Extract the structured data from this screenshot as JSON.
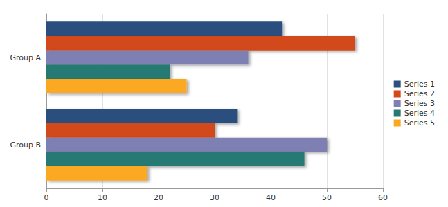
{
  "chart_data": {
    "type": "bar",
    "orientation": "horizontal",
    "grid": true,
    "legend": "right",
    "categories": [
      "Group A",
      "Group B"
    ],
    "series": [
      {
        "name": "Series 1",
        "color": "#2b4f7e",
        "values": [
          42,
          34
        ]
      },
      {
        "name": "Series 2",
        "color": "#d24a1c",
        "values": [
          55,
          30
        ]
      },
      {
        "name": "Series 3",
        "color": "#7e80b4",
        "values": [
          36,
          50
        ]
      },
      {
        "name": "Series 4",
        "color": "#277a73",
        "values": [
          22,
          46
        ]
      },
      {
        "name": "Series 5",
        "color": "#fba820",
        "values": [
          25,
          18
        ]
      }
    ],
    "xlim": [
      0,
      60
    ],
    "xticks": [
      0,
      10,
      20,
      30,
      40,
      50,
      60
    ]
  }
}
